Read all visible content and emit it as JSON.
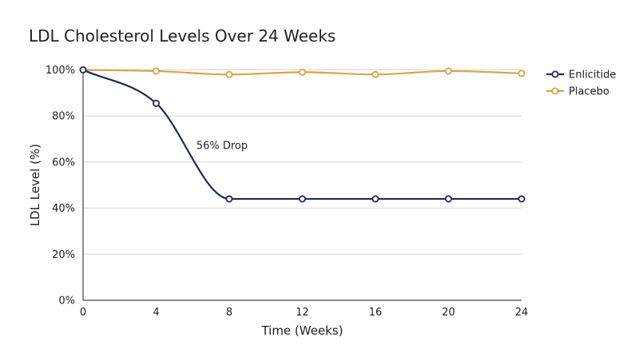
{
  "chart_data": {
    "type": "line",
    "title": "LDL Cholesterol Levels Over 24 Weeks",
    "xlabel": "Time (Weeks)",
    "ylabel": "LDL Level (%)",
    "x": [
      0,
      4,
      8,
      12,
      16,
      20,
      24
    ],
    "x_ticks": [
      "0",
      "4",
      "8",
      "12",
      "16",
      "20",
      "24"
    ],
    "y_ticks": [
      "0%",
      "20%",
      "40%",
      "60%",
      "80%",
      "100%"
    ],
    "y_tick_values": [
      0,
      20,
      40,
      60,
      80,
      100
    ],
    "xlim": [
      0,
      24
    ],
    "ylim": [
      0,
      100
    ],
    "grid": "horizontal",
    "legend_position": "top-right",
    "series": [
      {
        "name": "Enlicitide",
        "color": "#1b2a5a",
        "values": [
          100,
          85.5,
          44,
          44,
          44,
          44,
          44
        ]
      },
      {
        "name": "Placebo",
        "color": "#d9a443",
        "values": [
          100,
          99.5,
          98,
          99,
          98,
          99.5,
          98.5
        ]
      }
    ],
    "annotations": [
      {
        "text": "56% Drop",
        "x": 6.2,
        "y": 67
      }
    ]
  }
}
